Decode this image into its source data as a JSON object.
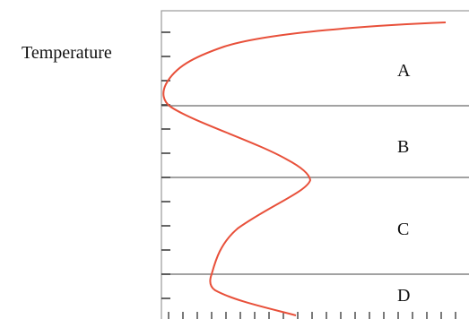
{
  "axis_label": "Temperature",
  "layers": [
    {
      "id": "A",
      "label": "A"
    },
    {
      "id": "B",
      "label": "B"
    },
    {
      "id": "C",
      "label": "C"
    },
    {
      "id": "D",
      "label": "D"
    }
  ],
  "colors": {
    "curve": "#e8503a",
    "frame": "#9a9a9a",
    "boundary": "#6a6a6a",
    "ticks": "#333333"
  }
}
